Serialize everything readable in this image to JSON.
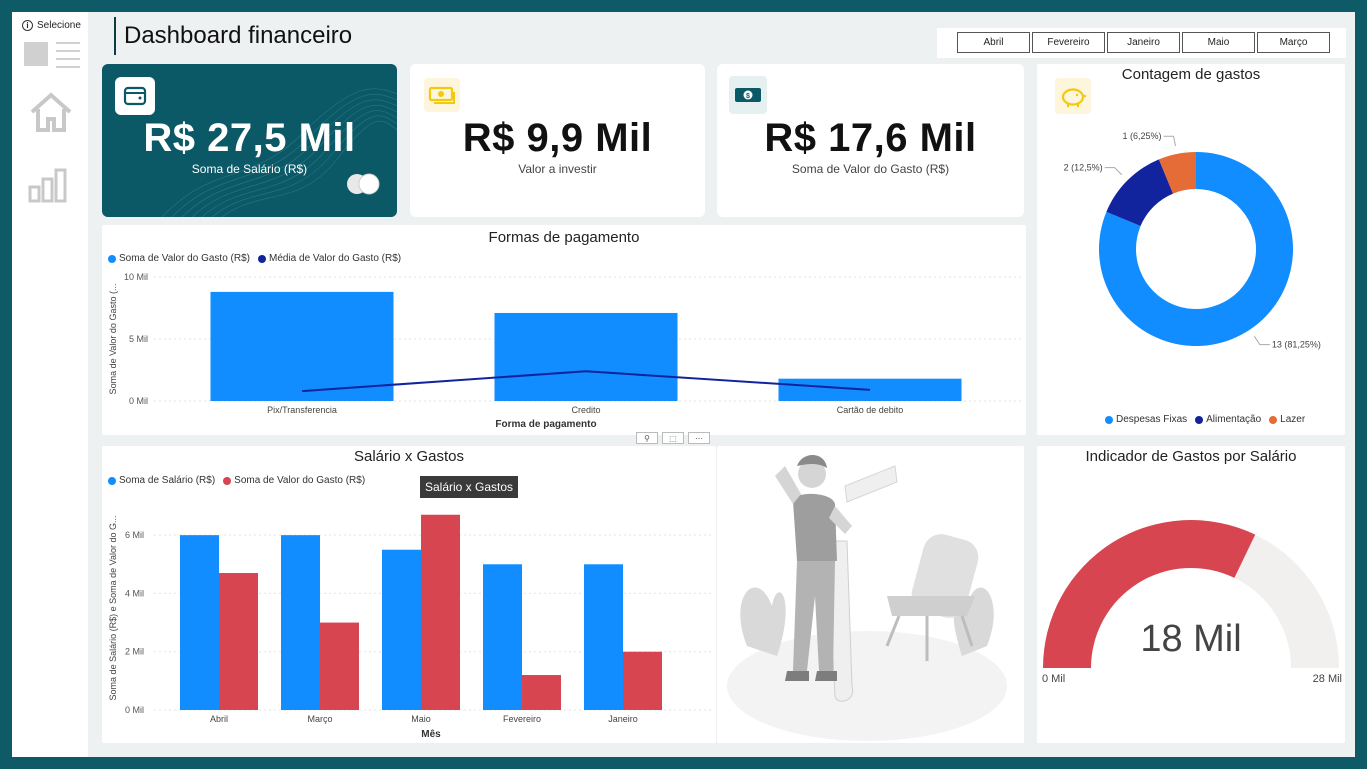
{
  "app": {
    "title": "Dashboard financeiro",
    "selector_label": "Selecione"
  },
  "months": [
    "Abril",
    "Fevereiro",
    "Janeiro",
    "Maio",
    "Março"
  ],
  "kpis": {
    "salary": {
      "value": "R$ 27,5 Mil",
      "label": "Soma de Salário (R$)"
    },
    "invest": {
      "value": "R$ 9,9 Mil",
      "label": "Valor a investir"
    },
    "spent": {
      "value": "R$ 17,6 Mil",
      "label": "Soma de Valor do Gasto (R$)"
    }
  },
  "colors": {
    "blue": "#118dff",
    "navy": "#12239e",
    "red": "#d64550",
    "orange": "#e66c37",
    "teal": "#0b5866",
    "gray": "#f1f0ef"
  },
  "tooltip": "Salário x Gastos",
  "chart_data": [
    {
      "id": "payments",
      "type": "bar",
      "title": "Formas de pagamento",
      "xlabel": "Forma de pagamento",
      "ylabel": "Soma de Valor do Gasto (...",
      "legend": [
        "Soma de Valor do Gasto (R$)",
        "Média de Valor do Gasto (R$)"
      ],
      "categories": [
        "Pix/Transferencia",
        "Credito",
        "Cartão de debito"
      ],
      "yticks": [
        "0 Mil",
        "5 Mil",
        "10 Mil"
      ],
      "ylim": [
        0,
        10
      ],
      "series": [
        {
          "name": "Soma de Valor do Gasto (R$)",
          "type": "bar",
          "values": [
            8.8,
            7.1,
            1.8
          ]
        },
        {
          "name": "Média de Valor do Gasto (R$)",
          "type": "line",
          "values": [
            0.8,
            2.4,
            0.9
          ]
        }
      ]
    },
    {
      "id": "salary_vs_spend",
      "type": "bar",
      "title": "Salário x Gastos",
      "xlabel": "Mês",
      "ylabel": "Soma de Salário (R$) e Soma de Valor do G...",
      "legend": [
        "Soma de Salário (R$)",
        "Soma de Valor do Gasto (R$)"
      ],
      "categories": [
        "Abril",
        "Março",
        "Maio",
        "Fevereiro",
        "Janeiro"
      ],
      "yticks": [
        "0 Mil",
        "2 Mil",
        "4 Mil",
        "6 Mil"
      ],
      "ylim": [
        0,
        7
      ],
      "series": [
        {
          "name": "Soma de Salário (R$)",
          "values": [
            6.0,
            6.0,
            5.5,
            5.0,
            5.0
          ]
        },
        {
          "name": "Soma de Valor do Gasto (R$)",
          "values": [
            4.7,
            3.0,
            6.7,
            1.2,
            2.0
          ]
        }
      ]
    },
    {
      "id": "expense_count",
      "type": "pie",
      "title": "Contagem de gastos",
      "slices": [
        {
          "name": "Despesas Fixas",
          "value": 13,
          "label": "13 (81,25%)"
        },
        {
          "name": "Alimentação",
          "value": 2,
          "label": "2 (12,5%)"
        },
        {
          "name": "Lazer",
          "value": 1,
          "label": "1 (6,25%)"
        }
      ]
    },
    {
      "id": "gauge",
      "type": "gauge",
      "title": "Indicador de Gastos por Salário",
      "value": 18,
      "min": 0,
      "max": 28,
      "value_label": "18 Mil",
      "min_label": "0 Mil",
      "max_label": "28 Mil"
    }
  ]
}
